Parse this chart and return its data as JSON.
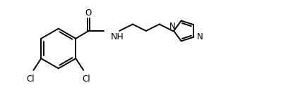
{
  "bg_color": "#ffffff",
  "line_color": "#000000",
  "line_width": 1.4,
  "font_size": 8.5,
  "figsize": [
    3.98,
    1.38
  ],
  "dpi": 100,
  "xlim": [
    0,
    10.5
  ],
  "ylim": [
    0,
    3.8
  ]
}
